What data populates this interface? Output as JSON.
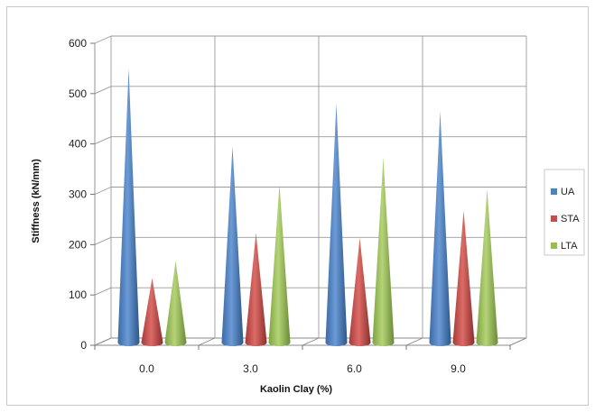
{
  "chart_data": {
    "type": "bar",
    "style": "3d-cone",
    "categories": [
      "0.0",
      "3.0",
      "6.0",
      "9.0"
    ],
    "series": [
      {
        "name": "UA",
        "color": "#4f81bd",
        "values": [
          545,
          390,
          475,
          460
        ]
      },
      {
        "name": "STA",
        "color": "#c0504d",
        "values": [
          128,
          218,
          208,
          262
        ]
      },
      {
        "name": "LTA",
        "color": "#9bbb59",
        "values": [
          163,
          315,
          368,
          305
        ]
      }
    ],
    "xlabel": "Kaolin Clay (%)",
    "ylabel": "Stiffness (kN/mm)",
    "ylim": [
      0,
      600
    ],
    "yticks": [
      "0",
      "100",
      "200",
      "300",
      "400",
      "500",
      "600"
    ],
    "grid": true,
    "legend": "right"
  }
}
